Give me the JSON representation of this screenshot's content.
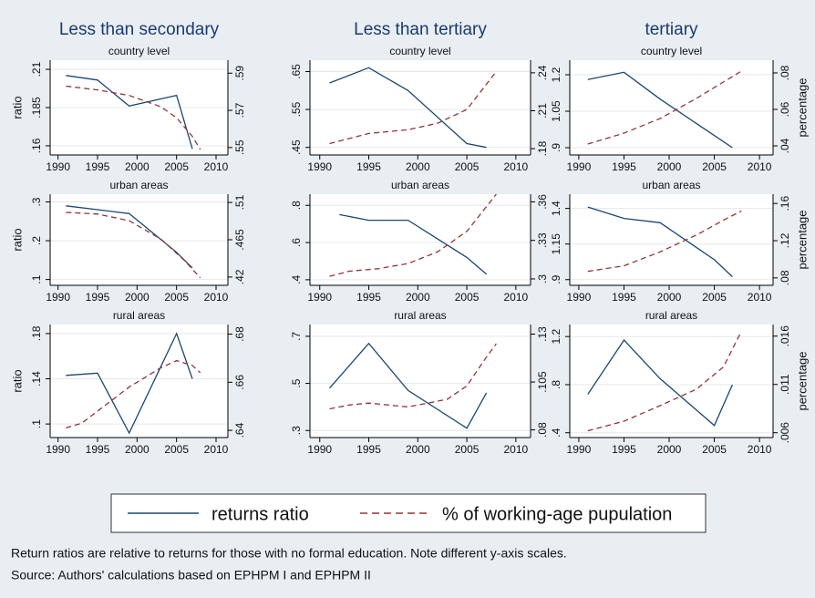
{
  "chart_data": [
    {
      "type": "line",
      "title": "Less than secondary",
      "subtitle": "country level",
      "ylabel": "ratio",
      "xlim": [
        1989,
        2011.5
      ],
      "xticks": [
        1990,
        1995,
        2000,
        2005,
        2010
      ],
      "ylim": [
        0.154,
        0.216
      ],
      "yticks": [
        {
          "value": 0.16,
          "label": ".16"
        },
        {
          "value": 0.185,
          "label": ".185"
        },
        {
          "value": 0.21,
          "label": ".21"
        }
      ],
      "y2lim": [
        0.546,
        0.597
      ],
      "y2ticks": [
        {
          "value": 0.55,
          "label": ".55"
        },
        {
          "value": 0.57,
          "label": ".57"
        },
        {
          "value": 0.59,
          "label": ".59"
        }
      ],
      "grid": true,
      "series": [
        {
          "color": "#1a476f",
          "x": [
            1991,
            1995,
            1999,
            2005,
            2007
          ],
          "values": [
            0.206,
            0.203,
            0.186,
            0.193,
            0.158
          ]
        },
        {
          "color": "#90353b",
          "linestyle": "dashed",
          "axis": "y2",
          "x": [
            1991,
            1995,
            1999,
            2003,
            2005,
            2007,
            2008
          ],
          "values": [
            0.583,
            0.581,
            0.578,
            0.572,
            0.566,
            0.556,
            0.549
          ]
        }
      ]
    },
    {
      "type": "line",
      "title": "Less than tertiary",
      "subtitle": "country level",
      "xlim": [
        1989,
        2011.5
      ],
      "xticks": [
        1990,
        1995,
        2000,
        2005,
        2010
      ],
      "ylim": [
        0.43,
        0.68
      ],
      "yticks": [
        {
          "value": 0.45,
          "label": ".45"
        },
        {
          "value": 0.55,
          "label": ".55"
        },
        {
          "value": 0.65,
          "label": ".65"
        }
      ],
      "y2lim": [
        0.175,
        0.25
      ],
      "y2ticks": [
        {
          "value": 0.18,
          "label": ".18"
        },
        {
          "value": 0.21,
          "label": ".21"
        },
        {
          "value": 0.24,
          "label": ".24"
        }
      ],
      "grid": true,
      "series": [
        {
          "color": "#1a476f",
          "x": [
            1991,
            1995,
            1999,
            2005,
            2007
          ],
          "values": [
            0.62,
            0.66,
            0.6,
            0.46,
            0.45
          ]
        },
        {
          "color": "#90353b",
          "linestyle": "dashed",
          "axis": "y2",
          "x": [
            1991,
            1995,
            1999,
            2002,
            2005,
            2008
          ],
          "values": [
            0.184,
            0.192,
            0.195,
            0.2,
            0.211,
            0.241
          ]
        }
      ]
    },
    {
      "type": "line",
      "title": "tertiary",
      "subtitle": "country level",
      "y2label": "percentage",
      "xlim": [
        1989,
        2011.5
      ],
      "xticks": [
        1990,
        1995,
        2000,
        2005,
        2010
      ],
      "ylim": [
        0.87,
        1.26
      ],
      "yticks": [
        {
          "value": 0.9,
          "label": ".9"
        },
        1.05,
        1.2
      ],
      "y2lim": [
        0.035,
        0.087
      ],
      "y2ticks": [
        {
          "value": 0.04,
          "label": ".04"
        },
        {
          "value": 0.06,
          "label": ".06"
        },
        {
          "value": 0.08,
          "label": ".08"
        }
      ],
      "grid": true,
      "series": [
        {
          "color": "#1a476f",
          "x": [
            1991,
            1995,
            1999,
            2005,
            2007
          ],
          "values": [
            1.18,
            1.21,
            1.1,
            0.95,
            0.9
          ]
        },
        {
          "color": "#90353b",
          "linestyle": "dashed",
          "axis": "y2",
          "x": [
            1991,
            1995,
            1999,
            2003,
            2006,
            2008
          ],
          "values": [
            0.041,
            0.047,
            0.055,
            0.066,
            0.075,
            0.081
          ]
        }
      ]
    },
    {
      "type": "line",
      "subtitle": "urban areas",
      "ylabel": "ratio",
      "xlim": [
        1989,
        2011.5
      ],
      "xticks": [
        1990,
        1995,
        2000,
        2005,
        2010
      ],
      "ylim": [
        0.085,
        0.32
      ],
      "yticks": [
        {
          "value": 0.1,
          "label": ".1"
        },
        {
          "value": 0.2,
          "label": ".2"
        },
        {
          "value": 0.3,
          "label": ".3"
        }
      ],
      "y2lim": [
        0.41,
        0.52
      ],
      "y2ticks": [
        {
          "value": 0.42,
          "label": ".42"
        },
        {
          "value": 0.465,
          "label": ".465"
        },
        {
          "value": 0.51,
          "label": ".51"
        }
      ],
      "grid": true,
      "series": [
        {
          "color": "#1a476f",
          "x": [
            1991,
            1995,
            1999,
            2005,
            2007
          ],
          "values": [
            0.29,
            0.28,
            0.27,
            0.17,
            0.13
          ]
        },
        {
          "color": "#90353b",
          "linestyle": "dashed",
          "axis": "y2",
          "x": [
            1991,
            1995,
            1999,
            2003,
            2006,
            2008
          ],
          "values": [
            0.498,
            0.496,
            0.488,
            0.466,
            0.44,
            0.419
          ]
        }
      ]
    },
    {
      "type": "line",
      "subtitle": "urban areas",
      "xlim": [
        1989,
        2011.5
      ],
      "xticks": [
        1990,
        1995,
        2000,
        2005,
        2010
      ],
      "ylim": [
        0.37,
        0.86
      ],
      "yticks": [
        {
          "value": 0.4,
          "label": ".4"
        },
        {
          "value": 0.6,
          "label": ".6"
        },
        {
          "value": 0.8,
          "label": ".8"
        }
      ],
      "y2lim": [
        0.295,
        0.366
      ],
      "y2ticks": [
        {
          "value": 0.3,
          "label": ".3"
        },
        {
          "value": 0.33,
          "label": ".33"
        },
        {
          "value": 0.36,
          "label": ".36"
        }
      ],
      "grid": true,
      "series": [
        {
          "color": "#1a476f",
          "x": [
            1992,
            1995,
            1999,
            2005,
            2007
          ],
          "values": [
            0.75,
            0.72,
            0.72,
            0.52,
            0.43
          ]
        },
        {
          "color": "#90353b",
          "linestyle": "dashed",
          "axis": "y2",
          "x": [
            1991,
            1993,
            1996,
            1999,
            2002,
            2005,
            2008
          ],
          "values": [
            0.302,
            0.306,
            0.308,
            0.312,
            0.321,
            0.337,
            0.366
          ]
        }
      ]
    },
    {
      "type": "line",
      "subtitle": "urban areas",
      "y2label": "percentage",
      "xlim": [
        1989,
        2011.5
      ],
      "xticks": [
        1990,
        1995,
        2000,
        2005,
        2010
      ],
      "ylim": [
        0.86,
        1.5
      ],
      "yticks": [
        {
          "value": 0.9,
          "label": ".9"
        },
        1.15,
        1.4
      ],
      "y2lim": [
        0.072,
        0.17
      ],
      "y2ticks": [
        {
          "value": 0.08,
          "label": ".08"
        },
        {
          "value": 0.12,
          "label": ".12"
        },
        {
          "value": 0.16,
          "label": ".16"
        }
      ],
      "grid": true,
      "series": [
        {
          "color": "#1a476f",
          "x": [
            1991,
            1995,
            1999,
            2005,
            2007
          ],
          "values": [
            1.41,
            1.33,
            1.3,
            1.04,
            0.92
          ]
        },
        {
          "color": "#90353b",
          "linestyle": "dashed",
          "axis": "y2",
          "x": [
            1991,
            1995,
            1999,
            2003,
            2006,
            2008
          ],
          "values": [
            0.087,
            0.093,
            0.108,
            0.126,
            0.142,
            0.152
          ]
        }
      ]
    },
    {
      "type": "line",
      "subtitle": "rural areas",
      "ylabel": "ratio",
      "xlim": [
        1989,
        2011.5
      ],
      "xticks": [
        1990,
        1995,
        2000,
        2005,
        2010
      ],
      "ylim": [
        0.088,
        0.188
      ],
      "yticks": [
        {
          "value": 0.1,
          "label": ".1"
        },
        {
          "value": 0.14,
          "label": ".14"
        },
        {
          "value": 0.18,
          "label": ".18"
        }
      ],
      "y2lim": [
        0.637,
        0.684
      ],
      "y2ticks": [
        {
          "value": 0.64,
          "label": ".64"
        },
        {
          "value": 0.66,
          "label": ".66"
        },
        {
          "value": 0.68,
          "label": ".68"
        }
      ],
      "grid": true,
      "series": [
        {
          "color": "#1a476f",
          "x": [
            1991,
            1995,
            1999,
            2005,
            2007
          ],
          "values": [
            0.143,
            0.145,
            0.092,
            0.18,
            0.14
          ]
        },
        {
          "color": "#90353b",
          "linestyle": "dashed",
          "axis": "y2",
          "x": [
            1991,
            1993,
            1995,
            1999,
            2003,
            2005,
            2007,
            2008
          ],
          "values": [
            0.641,
            0.643,
            0.648,
            0.658,
            0.666,
            0.669,
            0.667,
            0.664
          ]
        }
      ]
    },
    {
      "type": "line",
      "subtitle": "rural areas",
      "xlim": [
        1989,
        2011.5
      ],
      "xticks": [
        1990,
        1995,
        2000,
        2005,
        2010
      ],
      "ylim": [
        0.27,
        0.75
      ],
      "yticks": [
        {
          "value": 0.3,
          "label": ".3"
        },
        {
          "value": 0.5,
          "label": ".5"
        },
        {
          "value": 0.7,
          "label": ".7"
        }
      ],
      "y2lim": [
        0.076,
        0.135
      ],
      "y2ticks": [
        {
          "value": 0.08,
          "label": ".08"
        },
        {
          "value": 0.105,
          "label": ".105"
        },
        {
          "value": 0.13,
          "label": ".13"
        }
      ],
      "grid": true,
      "series": [
        {
          "color": "#1a476f",
          "x": [
            1991,
            1995,
            1999,
            2005,
            2007
          ],
          "values": [
            0.48,
            0.67,
            0.47,
            0.31,
            0.46
          ]
        },
        {
          "color": "#90353b",
          "linestyle": "dashed",
          "axis": "y2",
          "x": [
            1991,
            1993,
            1995,
            1999,
            2003,
            2005,
            2007,
            2008
          ],
          "values": [
            0.091,
            0.093,
            0.094,
            0.092,
            0.096,
            0.103,
            0.118,
            0.125
          ]
        }
      ]
    },
    {
      "type": "line",
      "subtitle": "rural areas",
      "y2label": "percentage",
      "xlim": [
        1989,
        2011.5
      ],
      "xticks": [
        1990,
        1995,
        2000,
        2005,
        2010
      ],
      "ylim": [
        0.36,
        1.3
      ],
      "yticks": [
        {
          "value": 0.4,
          "label": ".4"
        },
        {
          "value": 0.8,
          "label": ".8"
        },
        1.2
      ],
      "y2lim": [
        0.0055,
        0.0172
      ],
      "y2ticks": [
        {
          "value": 0.006,
          "label": ".006"
        },
        {
          "value": 0.011,
          "label": ".011"
        },
        {
          "value": 0.016,
          "label": ".016"
        }
      ],
      "grid": true,
      "series": [
        {
          "color": "#1a476f",
          "x": [
            1991,
            1995,
            1999,
            2005,
            2007
          ],
          "values": [
            0.72,
            1.17,
            0.85,
            0.46,
            0.8
          ]
        },
        {
          "color": "#90353b",
          "linestyle": "dashed",
          "axis": "y2",
          "x": [
            1991,
            1995,
            1999,
            2003,
            2006,
            2008
          ],
          "values": [
            0.0062,
            0.0072,
            0.0088,
            0.0105,
            0.0128,
            0.0165
          ]
        }
      ]
    }
  ],
  "legend": [
    "returns ratio",
    "% of working-age pupulation"
  ],
  "notes": [
    "Return ratios are relative to returns for those with no formal education. Note different y-axis scales.",
    "Source: Authors' calculations based on EPHPM I and EPHPM II"
  ]
}
